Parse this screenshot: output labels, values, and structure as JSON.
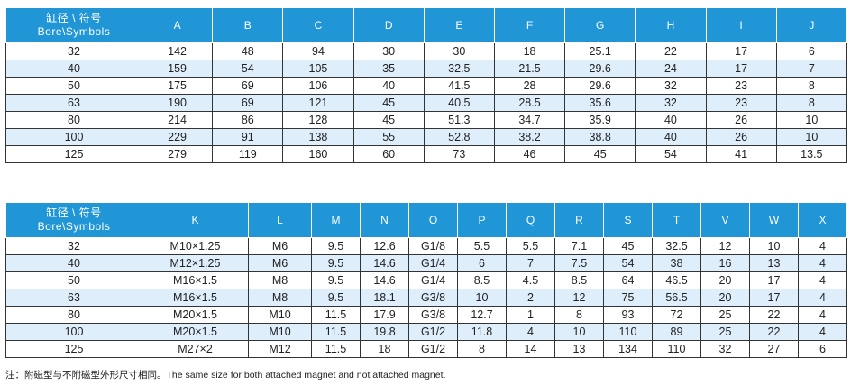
{
  "table1": {
    "header_line1": "缸径 \\ 符号",
    "header_line2": "Bore\\Symbols",
    "columns": [
      "A",
      "B",
      "C",
      "D",
      "E",
      "F",
      "G",
      "H",
      "I",
      "J"
    ],
    "rows": [
      [
        "32",
        "142",
        "48",
        "94",
        "30",
        "30",
        "18",
        "25.1",
        "22",
        "17",
        "6"
      ],
      [
        "40",
        "159",
        "54",
        "105",
        "35",
        "32.5",
        "21.5",
        "29.6",
        "24",
        "17",
        "7"
      ],
      [
        "50",
        "175",
        "69",
        "106",
        "40",
        "41.5",
        "28",
        "29.6",
        "32",
        "23",
        "8"
      ],
      [
        "63",
        "190",
        "69",
        "121",
        "45",
        "40.5",
        "28.5",
        "35.6",
        "32",
        "23",
        "8"
      ],
      [
        "80",
        "214",
        "86",
        "128",
        "45",
        "51.3",
        "34.7",
        "35.9",
        "40",
        "26",
        "10"
      ],
      [
        "100",
        "229",
        "91",
        "138",
        "55",
        "52.8",
        "38.2",
        "38.8",
        "40",
        "26",
        "10"
      ],
      [
        "125",
        "279",
        "119",
        "160",
        "60",
        "73",
        "46",
        "45",
        "54",
        "41",
        "13.5"
      ]
    ]
  },
  "table2": {
    "header_line1": "缸径 \\ 符号",
    "header_line2": "Bore\\Symbols",
    "columns": [
      "K",
      "L",
      "M",
      "N",
      "O",
      "P",
      "Q",
      "R",
      "S",
      "T",
      "V",
      "W",
      "X"
    ],
    "rows": [
      [
        "32",
        "M10×1.25",
        "M6",
        "9.5",
        "12.6",
        "G1/8",
        "5.5",
        "5.5",
        "7.1",
        "45",
        "32.5",
        "12",
        "10",
        "4"
      ],
      [
        "40",
        "M12×1.25",
        "M6",
        "9.5",
        "14.6",
        "G1/4",
        "6",
        "7",
        "7.5",
        "54",
        "38",
        "16",
        "13",
        "4"
      ],
      [
        "50",
        "M16×1.5",
        "M8",
        "9.5",
        "14.6",
        "G1/4",
        "8.5",
        "4.5",
        "8.5",
        "64",
        "46.5",
        "20",
        "17",
        "4"
      ],
      [
        "63",
        "M16×1.5",
        "M8",
        "9.5",
        "18.1",
        "G3/8",
        "10",
        "2",
        "12",
        "75",
        "56.5",
        "20",
        "17",
        "4"
      ],
      [
        "80",
        "M20×1.5",
        "M10",
        "11.5",
        "17.9",
        "G3/8",
        "12.7",
        "1",
        "8",
        "93",
        "72",
        "25",
        "22",
        "4"
      ],
      [
        "100",
        "M20×1.5",
        "M10",
        "11.5",
        "19.8",
        "G1/2",
        "11.8",
        "4",
        "10",
        "110",
        "89",
        "25",
        "22",
        "4"
      ],
      [
        "125",
        "M27×2",
        "M12",
        "11.5",
        "18",
        "G1/2",
        "8",
        "14",
        "13",
        "134",
        "110",
        "32",
        "27",
        "6"
      ]
    ]
  },
  "note": "注：附磁型与不附磁型外形尺寸相同。The same size for both attached magnet and not attached magnet."
}
